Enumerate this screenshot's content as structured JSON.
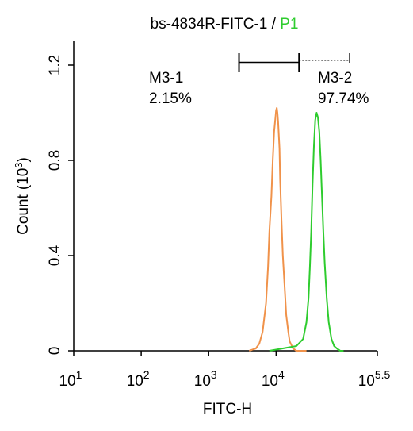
{
  "chart_data": {
    "type": "line",
    "title": {
      "main": "bs-4834R-FITC-1 / ",
      "gate": "P1"
    },
    "xlabel": "FITC-H",
    "ylabel": "Count",
    "ylabel_unit_prefix": "(10",
    "ylabel_unit_exp": "3",
    "ylabel_unit_suffix": ")",
    "x_scale": "log",
    "xlim": [
      1,
      5.5
    ],
    "ylim": [
      0,
      1.3
    ],
    "x_ticks": [
      {
        "value": 1,
        "base": "10",
        "exp": "1"
      },
      {
        "value": 2,
        "base": "10",
        "exp": "2"
      },
      {
        "value": 3,
        "base": "10",
        "exp": "3"
      },
      {
        "value": 4,
        "base": "10",
        "exp": "4"
      },
      {
        "value": 5.5,
        "base": "10",
        "exp": "5.5"
      }
    ],
    "y_ticks": [
      {
        "value": 0,
        "label": "0"
      },
      {
        "value": 0.4,
        "label": "0.4"
      },
      {
        "value": 0.8,
        "label": "0.8"
      },
      {
        "value": 1.2,
        "label": "1.2"
      }
    ],
    "gates": [
      {
        "name": "M3-1",
        "percent": "2.15%",
        "x_start": 3.45,
        "x_end": 4.34
      },
      {
        "name": "M3-2",
        "percent": "97.74%",
        "x_start": 4.34,
        "x_end": 5.09
      }
    ],
    "series": [
      {
        "color": "#f0924a",
        "x": [
          3.6,
          3.7,
          3.75,
          3.8,
          3.85,
          3.88,
          3.9,
          3.93,
          3.95,
          3.97,
          3.99,
          4.0,
          4.01,
          4.02,
          4.03,
          4.05,
          4.06,
          4.08,
          4.1,
          4.13,
          4.15,
          4.18,
          4.2,
          4.25,
          4.3,
          4.38,
          4.45
        ],
        "y": [
          0.0,
          0.01,
          0.03,
          0.08,
          0.2,
          0.35,
          0.5,
          0.65,
          0.8,
          0.92,
          0.98,
          1.01,
          1.02,
          1.0,
          0.96,
          0.85,
          0.72,
          0.55,
          0.4,
          0.25,
          0.15,
          0.08,
          0.04,
          0.01,
          0.0,
          0.0,
          0.0
        ]
      },
      {
        "color": "#2ecc2e",
        "x": [
          3.9,
          4.1,
          4.3,
          4.4,
          4.45,
          4.48,
          4.5,
          4.52,
          4.54,
          4.56,
          4.58,
          4.6,
          4.62,
          4.64,
          4.66,
          4.68,
          4.7,
          4.72,
          4.75,
          4.78,
          4.82,
          4.86,
          4.9,
          4.95,
          5.0
        ],
        "y": [
          0.0,
          0.01,
          0.02,
          0.05,
          0.12,
          0.22,
          0.35,
          0.5,
          0.7,
          0.86,
          0.97,
          1.0,
          0.98,
          0.92,
          0.8,
          0.65,
          0.5,
          0.37,
          0.22,
          0.12,
          0.05,
          0.02,
          0.01,
          0.0,
          0.0
        ]
      }
    ],
    "colors": {
      "axis": "#000000",
      "gate_text": "#2ecc2e"
    }
  }
}
